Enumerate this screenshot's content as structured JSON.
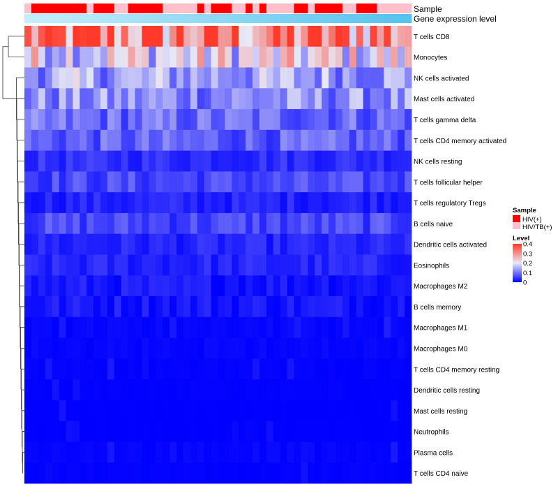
{
  "chart_data": {
    "type": "heatmap",
    "annotation_labels": [
      "Sample",
      "Gene expression level"
    ],
    "annotation_legend": {
      "title": "Sample",
      "entries": [
        {
          "label": "HIV(+)",
          "color": "#ff0000"
        },
        {
          "label": "HIV/TB(+)",
          "color": "#ffc0cb"
        }
      ]
    },
    "level_legend": {
      "title": "Level",
      "range": [
        0,
        0.4
      ],
      "ticks": [
        "0.4",
        "0.3",
        "0.2",
        "0.1",
        "0"
      ],
      "tick_values": [
        0.4,
        0.3,
        0.2,
        0.1,
        0
      ],
      "colors": {
        "low": "#0000ff",
        "mid": "#e8e8f6",
        "high": "#ff3a2a"
      }
    },
    "expression_gradient": {
      "from": "#c6eefa",
      "to": "#56c2ee"
    },
    "sample_groups": [
      1,
      0,
      0,
      0,
      0,
      0,
      0,
      0,
      0,
      1,
      0,
      0,
      0,
      1,
      1,
      0,
      0,
      0,
      0,
      0,
      1,
      1,
      1,
      1,
      1,
      0,
      1,
      0,
      0,
      0,
      1,
      1,
      0,
      1,
      0,
      1,
      1,
      1,
      1,
      0,
      0,
      1,
      0,
      0,
      0,
      0,
      1,
      1,
      0,
      0,
      0,
      1,
      1,
      1,
      1,
      1
    ],
    "rows": [
      "T cells CD8",
      "Monocytes",
      "NK cells activated",
      "Mast cells activated",
      "T cells gamma delta",
      "T cells CD4 memory activated",
      "NK cells resting",
      "T cells follicular helper",
      "T cells regulatory  Tregs",
      "B cells naive",
      "Dendritic cells activated",
      "Eosinophils",
      "Macrophages M2",
      "B cells memory",
      "Macrophages M1",
      "Macrophages M0",
      "T cells CD4 memory resting",
      "Dendritic cells resting",
      "Mast cells resting",
      "Neutrophils",
      "Plasma cells",
      "T cells CD4 naive"
    ],
    "row_means": [
      0.32,
      0.2,
      0.14,
      0.12,
      0.09,
      0.08,
      0.04,
      0.06,
      0.03,
      0.06,
      0.03,
      0.03,
      0.02,
      0.02,
      0.01,
      0.01,
      0.005,
      0.003,
      0.001,
      0.001,
      0.01,
      0.004
    ],
    "n_samples": 56
  }
}
